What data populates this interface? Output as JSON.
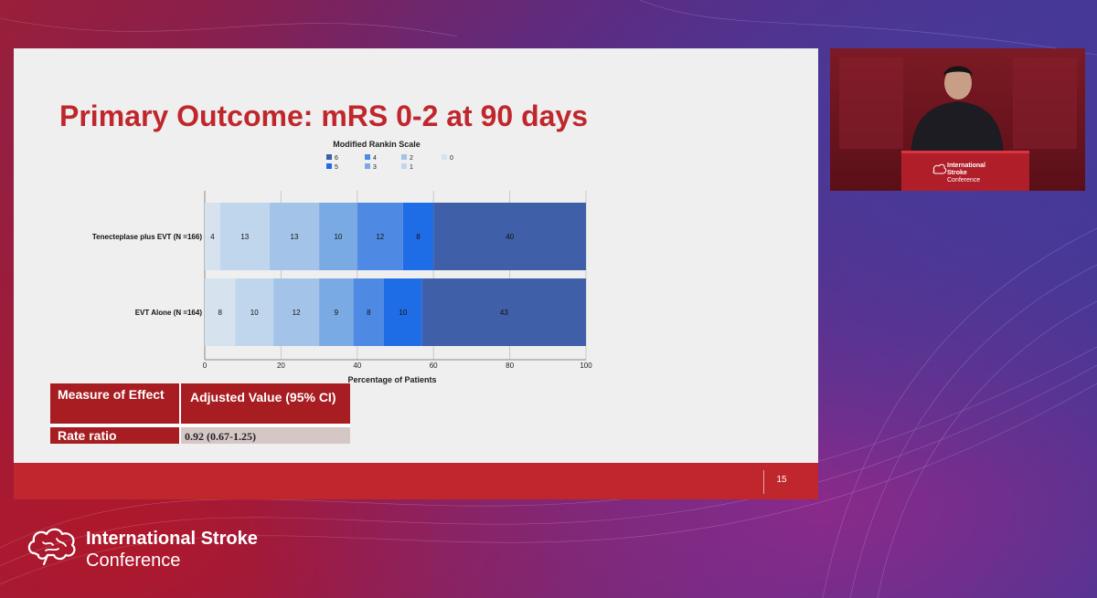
{
  "slide": {
    "title": "Primary Outcome: mRS 0-2 at 90 days",
    "page_number": "15"
  },
  "chart_data": {
    "type": "bar",
    "stacked": true,
    "orientation": "horizontal",
    "legend_title": "Modified Rankin Scale",
    "legend_placement": "top-center",
    "categories": [
      "Tenecteplase plus EVT (N =166)",
      "EVT Alone (N =164)"
    ],
    "series": [
      {
        "name": "0",
        "color": "#d6e2ee",
        "values": [
          4,
          8
        ]
      },
      {
        "name": "1",
        "color": "#c0d6ec",
        "values": [
          13,
          10
        ]
      },
      {
        "name": "2",
        "color": "#a3c4e8",
        "values": [
          13,
          12
        ]
      },
      {
        "name": "3",
        "color": "#7aaae3",
        "values": [
          10,
          9
        ]
      },
      {
        "name": "4",
        "color": "#4e8ae4",
        "values": [
          12,
          8
        ]
      },
      {
        "name": "5",
        "color": "#1f6de6",
        "values": [
          8,
          10
        ]
      },
      {
        "name": "6",
        "color": "#3f5fa8",
        "values": [
          40,
          43
        ]
      }
    ],
    "legend_order": [
      "6",
      "4",
      "2",
      "0",
      "5",
      "3",
      "1"
    ],
    "xlabel": "Percentage of Patients",
    "xlim": [
      0,
      100
    ],
    "xticks": [
      0,
      20,
      40,
      60,
      80,
      100
    ],
    "grid": true
  },
  "effect_table": {
    "header_measure": "Measure of Effect",
    "header_value": "Adjusted Value (95% CI)",
    "row_measure": "Rate ratio",
    "row_value": "0.92 (0.67-1.25)"
  },
  "camera": {
    "podium_line1": "International",
    "podium_line2": "Stroke",
    "podium_line3": "Conference"
  },
  "brand": {
    "line1": "International Stroke",
    "line2": "Conference"
  }
}
